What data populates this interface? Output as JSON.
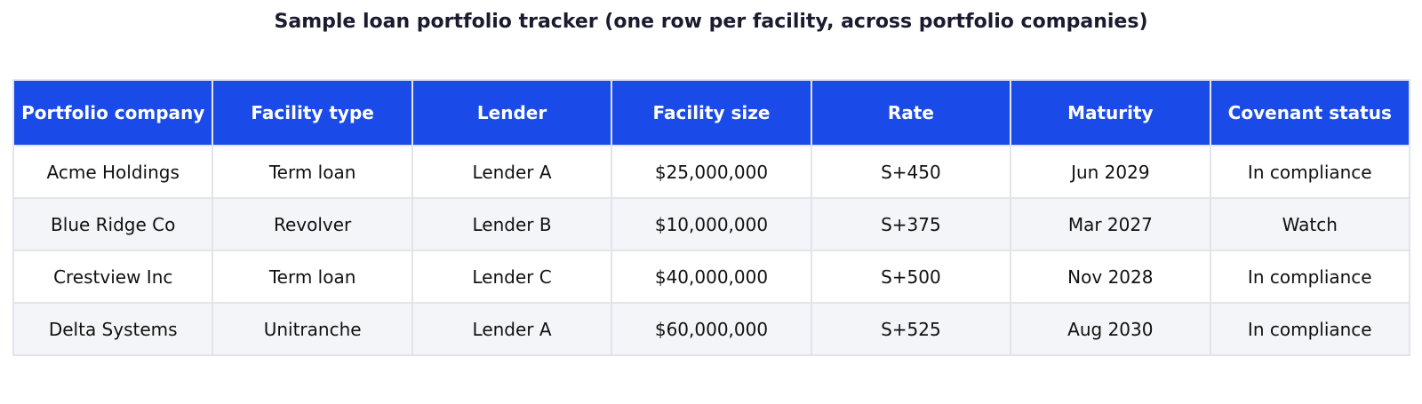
{
  "title": "Sample loan portfolio tracker (one row per facility, across portfolio companies)",
  "colors": {
    "header_bg": "#1a4be8",
    "header_text": "#ffffff",
    "row_alt_bg": "#f4f5f9",
    "grid_line": "#e2e4ea"
  },
  "table": {
    "columns": [
      "Portfolio company",
      "Facility type",
      "Lender",
      "Facility size",
      "Rate",
      "Maturity",
      "Covenant status"
    ],
    "rows": [
      [
        "Acme Holdings",
        "Term loan",
        "Lender A",
        "$25,000,000",
        "S+450",
        "Jun 2029",
        "In compliance"
      ],
      [
        "Blue Ridge Co",
        "Revolver",
        "Lender B",
        "$10,000,000",
        "S+375",
        "Mar 2027",
        "Watch"
      ],
      [
        "Crestview Inc",
        "Term loan",
        "Lender C",
        "$40,000,000",
        "S+500",
        "Nov 2028",
        "In compliance"
      ],
      [
        "Delta Systems",
        "Unitranche",
        "Lender A",
        "$60,000,000",
        "S+525",
        "Aug 2030",
        "In compliance"
      ]
    ]
  }
}
